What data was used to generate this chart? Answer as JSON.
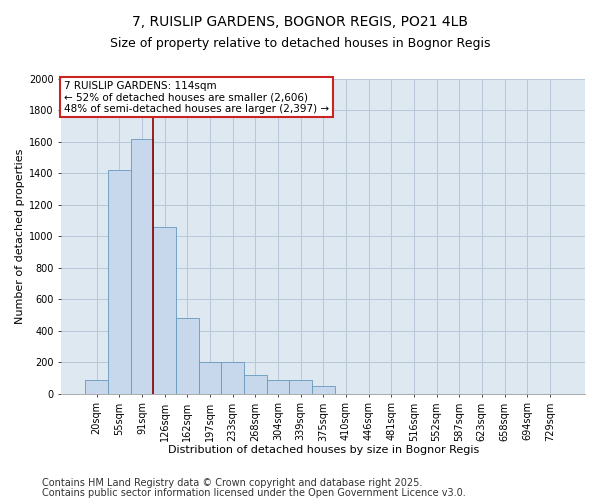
{
  "title1": "7, RUISLIP GARDENS, BOGNOR REGIS, PO21 4LB",
  "title2": "Size of property relative to detached houses in Bognor Regis",
  "xlabel": "Distribution of detached houses by size in Bognor Regis",
  "ylabel": "Number of detached properties",
  "categories": [
    "20sqm",
    "55sqm",
    "91sqm",
    "126sqm",
    "162sqm",
    "197sqm",
    "233sqm",
    "268sqm",
    "304sqm",
    "339sqm",
    "375sqm",
    "410sqm",
    "446sqm",
    "481sqm",
    "516sqm",
    "552sqm",
    "587sqm",
    "623sqm",
    "658sqm",
    "694sqm",
    "729sqm"
  ],
  "values": [
    90,
    1420,
    1620,
    1060,
    480,
    200,
    200,
    120,
    90,
    90,
    50,
    0,
    0,
    0,
    0,
    0,
    0,
    0,
    0,
    0,
    0
  ],
  "bar_color": "#c8d8ec",
  "bar_edge_color": "#6699bb",
  "vline_color": "#880000",
  "annotation_text": "7 RUISLIP GARDENS: 114sqm\n← 52% of detached houses are smaller (2,606)\n48% of semi-detached houses are larger (2,397) →",
  "annotation_box_color": "#ffffff",
  "annotation_box_edge_color": "#cc2222",
  "ylim": [
    0,
    2000
  ],
  "yticks": [
    0,
    200,
    400,
    600,
    800,
    1000,
    1200,
    1400,
    1600,
    1800,
    2000
  ],
  "grid_color": "#b8c8d8",
  "bg_color": "#dde8f0",
  "footer1": "Contains HM Land Registry data © Crown copyright and database right 2025.",
  "footer2": "Contains public sector information licensed under the Open Government Licence v3.0.",
  "title_fontsize": 10,
  "subtitle_fontsize": 9,
  "footer_fontsize": 7,
  "axis_label_fontsize": 8,
  "tick_fontsize": 7,
  "annot_fontsize": 7.5,
  "vline_x_index": 2.5
}
